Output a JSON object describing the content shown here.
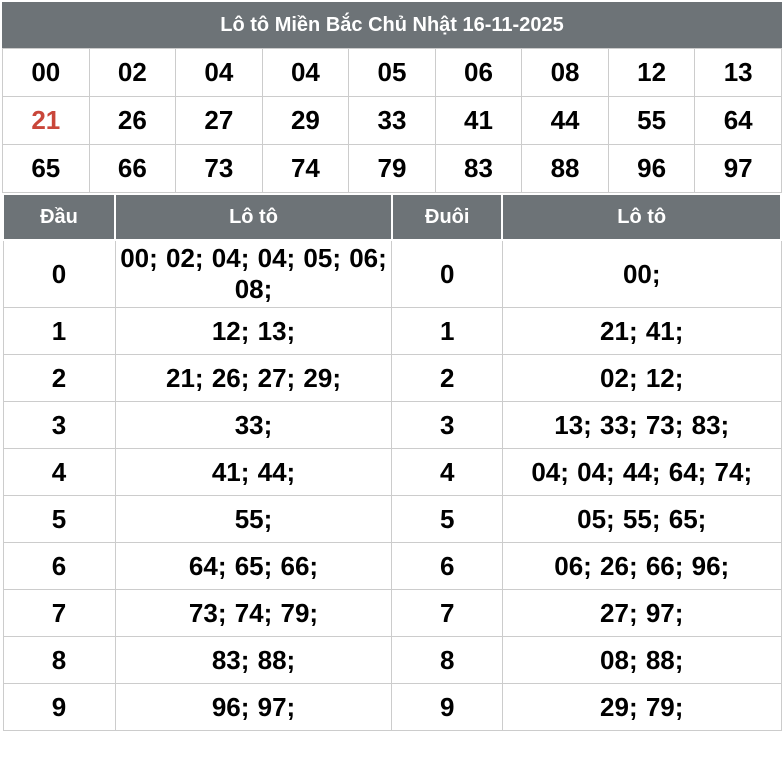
{
  "title": "Lô tô Miền Bắc Chủ Nhật 16-11-2025",
  "number_grid": {
    "rows": [
      [
        "00",
        "02",
        "04",
        "04",
        "05",
        "06",
        "08",
        "12",
        "13"
      ],
      [
        "21",
        "26",
        "27",
        "29",
        "33",
        "41",
        "44",
        "55",
        "64"
      ],
      [
        "65",
        "66",
        "73",
        "74",
        "79",
        "83",
        "88",
        "96",
        "97"
      ]
    ],
    "special": {
      "row": 1,
      "col": 0,
      "value": "21"
    }
  },
  "dau_duoi_table": {
    "headers": [
      "Đầu",
      "Lô tô",
      "Đuôi",
      "Lô tô"
    ],
    "rows": [
      {
        "dau": "0",
        "lo_by_dau": "00; 02; 04; 04; 05; 06; 08;",
        "duoi": "0",
        "lo_by_duoi": "00;"
      },
      {
        "dau": "1",
        "lo_by_dau": "12; 13;",
        "duoi": "1",
        "lo_by_duoi": "21; 41;"
      },
      {
        "dau": "2",
        "lo_by_dau": "21; 26; 27; 29;",
        "duoi": "2",
        "lo_by_duoi": "02; 12;"
      },
      {
        "dau": "3",
        "lo_by_dau": "33;",
        "duoi": "3",
        "lo_by_duoi": "13; 33; 73; 83;"
      },
      {
        "dau": "4",
        "lo_by_dau": "41; 44;",
        "duoi": "4",
        "lo_by_duoi": "04; 04; 44; 64; 74;"
      },
      {
        "dau": "5",
        "lo_by_dau": "55;",
        "duoi": "5",
        "lo_by_duoi": "05; 55; 65;"
      },
      {
        "dau": "6",
        "lo_by_dau": "64; 65; 66;",
        "duoi": "6",
        "lo_by_duoi": "06; 26; 66; 96;"
      },
      {
        "dau": "7",
        "lo_by_dau": "73; 74; 79;",
        "duoi": "7",
        "lo_by_duoi": "27; 97;"
      },
      {
        "dau": "8",
        "lo_by_dau": "83; 88;",
        "duoi": "8",
        "lo_by_duoi": "08; 88;"
      },
      {
        "dau": "9",
        "lo_by_dau": "96; 97;",
        "duoi": "9",
        "lo_by_duoi": "29; 79;"
      }
    ]
  },
  "colors": {
    "header_bg": "#6d7377",
    "header_text": "#ffffff",
    "special_number": "#c9463a",
    "cell_border": "#cccccc",
    "number_text": "#000000"
  }
}
